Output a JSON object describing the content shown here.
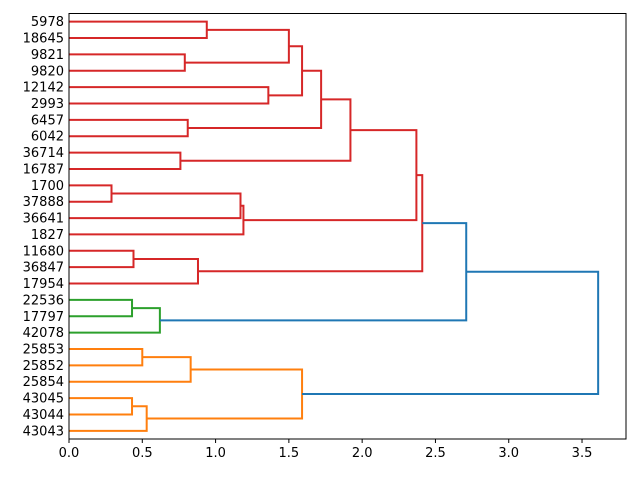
{
  "figure": {
    "background": "#ffffff"
  },
  "chart_data": {
    "type": "dendrogram",
    "orientation": "labels-left-root-right",
    "title": "",
    "xlabel": "",
    "ylabel": "",
    "grid": false,
    "legend": null,
    "x_ticks": [
      "0.0",
      "0.5",
      "1.0",
      "1.5",
      "2.0",
      "2.5",
      "3.0",
      "3.5"
    ],
    "x_tick_values": [
      0,
      0.5,
      1.0,
      1.5,
      2.0,
      2.5,
      3.0,
      3.5
    ],
    "xlim": [
      0,
      3.8
    ],
    "leaf_labels": [
      "5978",
      "18645",
      "9821",
      "9820",
      "12142",
      "2993",
      "6457",
      "6042",
      "36714",
      "16787",
      "1700",
      "37888",
      "36641",
      "1827",
      "11680",
      "36847",
      "17954",
      "22536",
      "17797",
      "42078",
      "25853",
      "25852",
      "25854",
      "43045",
      "43044",
      "43043"
    ],
    "link_colors": {
      "red": "#d62728",
      "green": "#2ca02c",
      "orange": "#ff7f0e",
      "blue": "#1f77b4"
    },
    "axis_color": "#000000",
    "merges": [
      [
        "m1",
        0,
        1,
        0.94,
        "red"
      ],
      [
        "m2",
        2,
        3,
        0.79,
        "red"
      ],
      [
        "m3",
        "m1",
        "m2",
        1.5,
        "red"
      ],
      [
        "m4",
        4,
        5,
        1.36,
        "red"
      ],
      [
        "m5",
        "m3",
        "m4",
        1.59,
        "red"
      ],
      [
        "m6",
        6,
        7,
        0.81,
        "red"
      ],
      [
        "m7",
        "m5",
        "m6",
        1.72,
        "red"
      ],
      [
        "m8",
        8,
        9,
        0.76,
        "red"
      ],
      [
        "m9",
        "m7",
        "m8",
        1.92,
        "red"
      ],
      [
        "m10",
        10,
        11,
        0.29,
        "red"
      ],
      [
        "m11",
        "m10",
        12,
        1.17,
        "red"
      ],
      [
        "m12",
        "m11",
        13,
        1.19,
        "red"
      ],
      [
        "m13",
        14,
        15,
        0.44,
        "red"
      ],
      [
        "m14",
        "m13",
        16,
        0.88,
        "red"
      ],
      [
        "m15",
        "m9",
        "m12",
        2.37,
        "red"
      ],
      [
        "m16",
        "m15",
        "m14",
        2.41,
        "red"
      ],
      [
        "m17",
        17,
        18,
        0.43,
        "green"
      ],
      [
        "m18",
        "m17",
        19,
        0.62,
        "green"
      ],
      [
        "m19",
        20,
        21,
        0.5,
        "orange"
      ],
      [
        "m20",
        "m19",
        22,
        0.83,
        "orange"
      ],
      [
        "m21",
        23,
        24,
        0.43,
        "orange"
      ],
      [
        "m22",
        "m21",
        25,
        0.53,
        "orange"
      ],
      [
        "m23",
        "m20",
        "m22",
        1.59,
        "orange"
      ],
      [
        "m24",
        "m16",
        "m18",
        2.71,
        "blue"
      ],
      [
        "m25",
        "m24",
        "m23",
        3.61,
        "blue"
      ]
    ]
  }
}
